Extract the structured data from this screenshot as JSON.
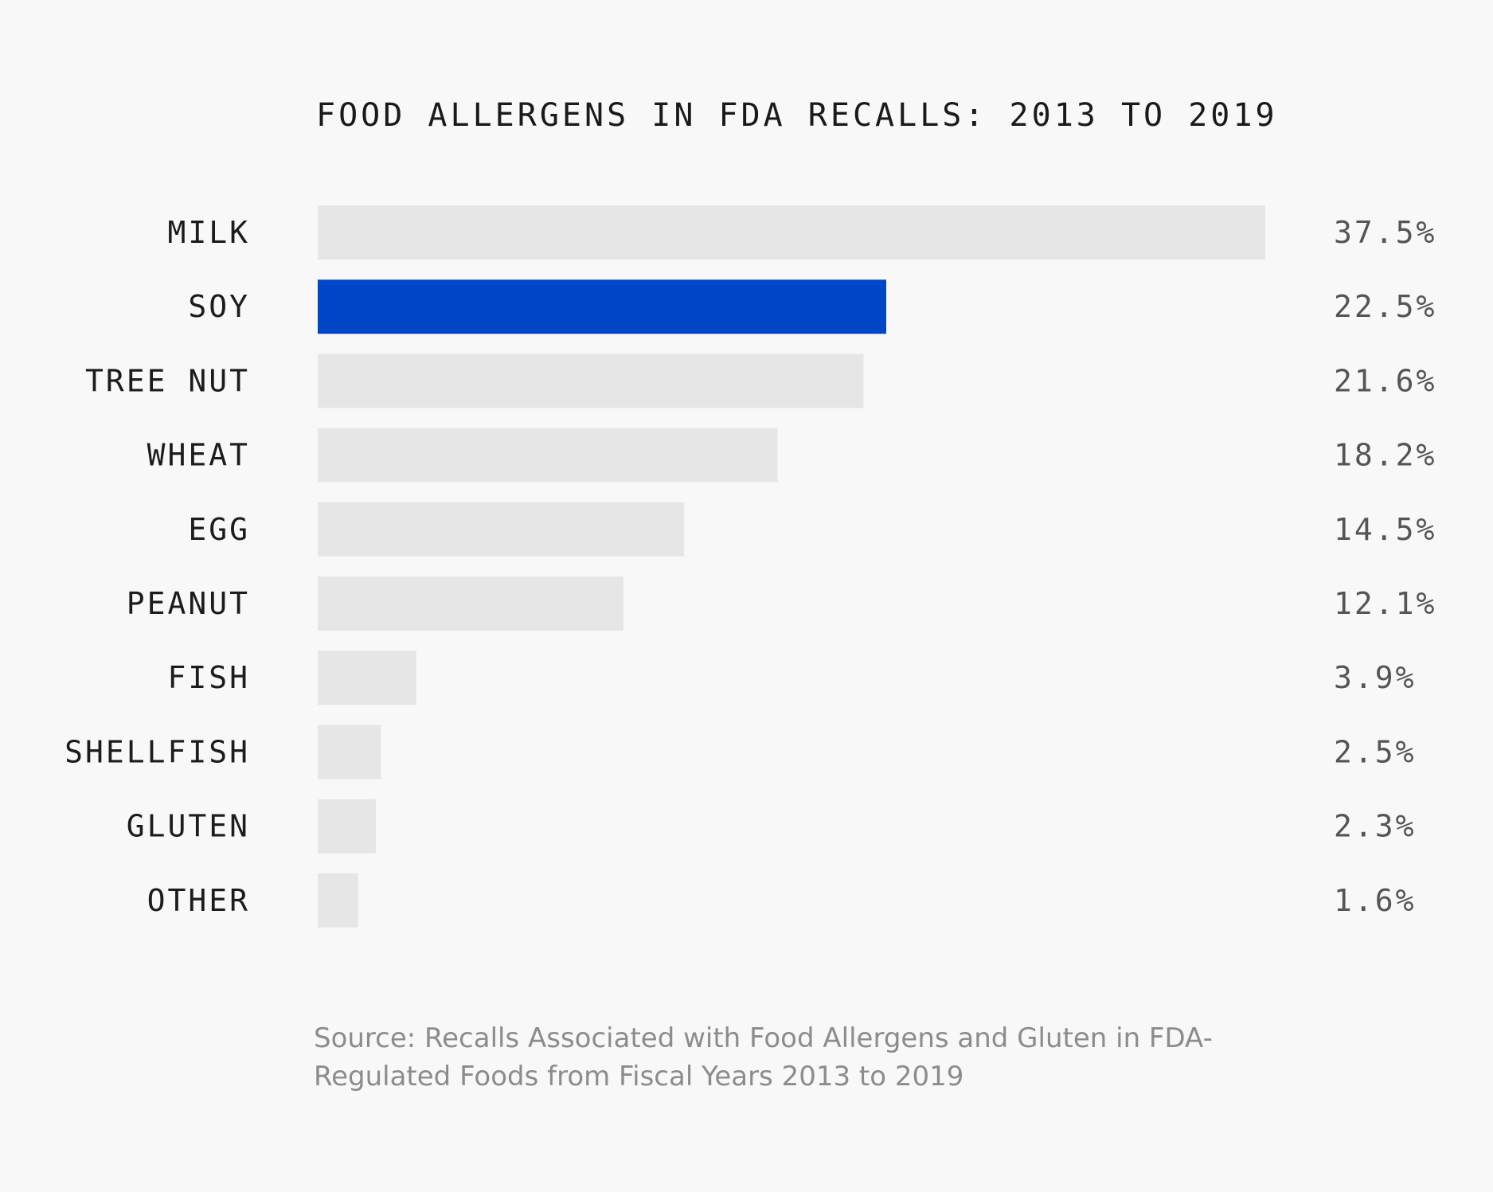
{
  "colors": {
    "background": "#f8f8f8",
    "bar_default": "#e6e6e6",
    "bar_highlight": "#0047c8",
    "text_primary": "#1c1c1c",
    "text_value": "#555555",
    "text_source": "#8c8c8c"
  },
  "chart_data": {
    "type": "bar",
    "orientation": "horizontal",
    "title": "FOOD ALLERGENS IN FDA RECALLS: 2013 TO 2019",
    "categories": [
      "MILK",
      "SOY",
      "TREE NUT",
      "WHEAT",
      "EGG",
      "PEANUT",
      "FISH",
      "SHELLFISH",
      "GLUTEN",
      "OTHER"
    ],
    "values": [
      37.5,
      22.5,
      21.6,
      18.2,
      14.5,
      12.1,
      3.9,
      2.5,
      2.3,
      1.6
    ],
    "value_labels": [
      "37.5%",
      "22.5%",
      "21.6%",
      "18.2%",
      "14.5%",
      "12.1%",
      "3.9%",
      "2.5%",
      "2.3%",
      "1.6%"
    ],
    "highlight": "SOY",
    "xlim": [
      0,
      37.5
    ],
    "grid": false,
    "legend": "none"
  },
  "source": {
    "text": "Source: Recalls Associated with Food Allergens and Gluten in FDA-Regulated Foods from Fiscal Years 2013 to 2019"
  }
}
